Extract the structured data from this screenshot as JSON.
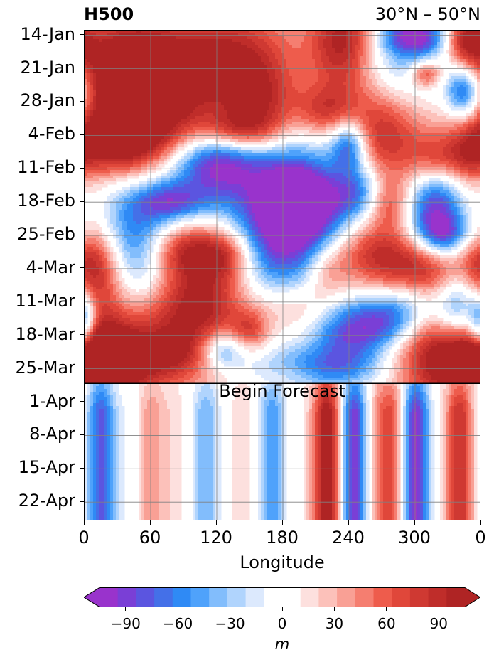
{
  "chart_data": {
    "type": "heatmap",
    "title_left": "H500",
    "title_right": "30°N – 50°N",
    "xlabel": "Longitude",
    "xlim": [
      0,
      360
    ],
    "x_ticks": [
      "0",
      "60",
      "120",
      "180",
      "240",
      "300",
      "0"
    ],
    "y_ticks": [
      "14-Jan",
      "21-Jan",
      "28-Jan",
      "4-Feb",
      "11-Feb",
      "18-Feb",
      "25-Feb",
      "4-Mar",
      "11-Mar",
      "18-Mar",
      "25-Mar",
      "1-Apr",
      "8-Apr",
      "15-Apr",
      "22-Apr"
    ],
    "y_start": "13-Jan",
    "y_end": "26-Apr",
    "forecast_start": "28-Mar",
    "forecast_label": "Begin Forecast",
    "grid": true,
    "colorbar": {
      "label": "m",
      "ticks": [
        "−90",
        "−60",
        "−30",
        "0",
        "30",
        "60",
        "90"
      ],
      "tick_values": [
        -90,
        -60,
        -30,
        0,
        30,
        60,
        90
      ],
      "range": [
        -105,
        105
      ],
      "step": 10,
      "extend": "both",
      "colors": [
        "#9933cc",
        "#7a3fd6",
        "#5b55e0",
        "#4470e8",
        "#2f8af5",
        "#4fa2fb",
        "#82bdfc",
        "#b0d4fd",
        "#dce9fd",
        "#ffffff",
        "#ffffff",
        "#fde0de",
        "#fcc1ba",
        "#f9a095",
        "#f57e70",
        "#ee5c4c",
        "#e0473a",
        "#cf3932",
        "#bf2d2a",
        "#af2424"
      ]
    },
    "observed_anomaly_blobs": [
      {
        "lon": 40,
        "date": "19-Jan",
        "value": 95,
        "rlon": 30,
        "rdays": 6
      },
      {
        "lon": 55,
        "date": "29-Jan",
        "value": 100,
        "rlon": 45,
        "rdays": 8
      },
      {
        "lon": 30,
        "date": "6-Feb",
        "value": 80,
        "rlon": 35,
        "rdays": 5
      },
      {
        "lon": 130,
        "date": "18-Jan",
        "value": 85,
        "rlon": 45,
        "rdays": 7
      },
      {
        "lon": 140,
        "date": "3-Feb",
        "value": 60,
        "rlon": 25,
        "rdays": 3
      },
      {
        "lon": 160,
        "date": "29-Jan",
        "value": 75,
        "rlon": 25,
        "rdays": 6
      },
      {
        "lon": 60,
        "date": "23-Jan",
        "value": -50,
        "rlon": 8,
        "rdays": 2
      },
      {
        "lon": 115,
        "date": "10-Feb",
        "value": -95,
        "rlon": 30,
        "rdays": 5
      },
      {
        "lon": 180,
        "date": "24-Feb",
        "value": -105,
        "rlon": 40,
        "rdays": 14
      },
      {
        "lon": 195,
        "date": "18-Feb",
        "value": -95,
        "rlon": 22,
        "rdays": 5
      },
      {
        "lon": 235,
        "date": "16-Jan",
        "value": 100,
        "rlon": 22,
        "rdays": 8
      },
      {
        "lon": 218,
        "date": "30-Jan",
        "value": 60,
        "rlon": 20,
        "rdays": 4
      },
      {
        "lon": 285,
        "date": "20-Jan",
        "value": -40,
        "rlon": 45,
        "rdays": 6
      },
      {
        "lon": 300,
        "date": "14-Jan",
        "value": -90,
        "rlon": 22,
        "rdays": 3
      },
      {
        "lon": 347,
        "date": "15-Jan",
        "value": 95,
        "rlon": 15,
        "rdays": 4
      },
      {
        "lon": 345,
        "date": "26-Jan",
        "value": -90,
        "rlon": 12,
        "rdays": 4
      },
      {
        "lon": 310,
        "date": "22-Jan",
        "value": 70,
        "rlon": 10,
        "rdays": 2
      },
      {
        "lon": 270,
        "date": "4-Feb",
        "value": 75,
        "rlon": 25,
        "rdays": 7
      },
      {
        "lon": 240,
        "date": "6-Feb",
        "value": -85,
        "rlon": 12,
        "rdays": 4
      },
      {
        "lon": 250,
        "date": "16-Feb",
        "value": -65,
        "rlon": 18,
        "rdays": 4
      },
      {
        "lon": 320,
        "date": "9-Feb",
        "value": 60,
        "rlon": 20,
        "rdays": 4
      },
      {
        "lon": 350,
        "date": "8-Feb",
        "value": 30,
        "rlon": 12,
        "rdays": 4
      },
      {
        "lon": 318,
        "date": "20-Feb",
        "value": -95,
        "rlon": 18,
        "rdays": 7
      },
      {
        "lon": 330,
        "date": "25-Feb",
        "value": -60,
        "rlon": 18,
        "rdays": 3
      },
      {
        "lon": 275,
        "date": "18-Feb",
        "value": 60,
        "rlon": 15,
        "rdays": 4
      },
      {
        "lon": 260,
        "date": "1-Mar",
        "value": 75,
        "rlon": 25,
        "rdays": 5
      },
      {
        "lon": 310,
        "date": "4-Mar",
        "value": 85,
        "rlon": 25,
        "rdays": 5
      },
      {
        "lon": 340,
        "date": "12-Mar",
        "value": -95,
        "rlon": 15,
        "rdays": 6
      },
      {
        "lon": 300,
        "date": "11-Mar",
        "value": -40,
        "rlon": 20,
        "rdays": 4
      },
      {
        "lon": 8,
        "date": "3-Mar",
        "value": 85,
        "rlon": 20,
        "rdays": 6
      },
      {
        "lon": 45,
        "date": "2-Mar",
        "value": -100,
        "rlon": 25,
        "rdays": 11
      },
      {
        "lon": 80,
        "date": "18-Feb",
        "value": -70,
        "rlon": 22,
        "rdays": 3
      },
      {
        "lon": 90,
        "date": "28-Feb",
        "value": 60,
        "rlon": 25,
        "rdays": 4
      },
      {
        "lon": 40,
        "date": "18-Mar",
        "value": 100,
        "rlon": 40,
        "rdays": 11
      },
      {
        "lon": 15,
        "date": "23-Mar",
        "value": 80,
        "rlon": 25,
        "rdays": 4
      },
      {
        "lon": 0,
        "date": "16-Mar",
        "value": -100,
        "rlon": 8,
        "rdays": 5
      },
      {
        "lon": 110,
        "date": "11-Mar",
        "value": 85,
        "rlon": 30,
        "rdays": 9
      },
      {
        "lon": 130,
        "date": "1-Mar",
        "value": 60,
        "rlon": 18,
        "rdays": 4
      },
      {
        "lon": 150,
        "date": "17-Mar",
        "value": 50,
        "rlon": 12,
        "rdays": 3
      },
      {
        "lon": 125,
        "date": "21-Mar",
        "value": -70,
        "rlon": 15,
        "rdays": 3
      },
      {
        "lon": 195,
        "date": "12-Mar",
        "value": 65,
        "rlon": 35,
        "rdays": 5
      },
      {
        "lon": 220,
        "date": "4-Mar",
        "value": 45,
        "rlon": 15,
        "rdays": 4
      },
      {
        "lon": 240,
        "date": "17-Mar",
        "value": -85,
        "rlon": 25,
        "rdays": 5
      },
      {
        "lon": 275,
        "date": "15-Mar",
        "value": -60,
        "rlon": 20,
        "rdays": 4
      },
      {
        "lon": 215,
        "date": "25-Mar",
        "value": -55,
        "rlon": 40,
        "rdays": 3
      },
      {
        "lon": 330,
        "date": "23-Mar",
        "value": 100,
        "rlon": 35,
        "rdays": 7
      },
      {
        "lon": 80,
        "date": "22-Mar",
        "value": 30,
        "rlon": 20,
        "rdays": 3
      },
      {
        "lon": 190,
        "date": "26-Mar",
        "value": 20,
        "rlon": 20,
        "rdays": 2
      }
    ],
    "forecast_bands": [
      {
        "lon": 15,
        "value": -80
      },
      {
        "lon": 40,
        "value": -12
      },
      {
        "lon": 60,
        "value": 32
      },
      {
        "lon": 80,
        "value": 10
      },
      {
        "lon": 110,
        "value": -45
      },
      {
        "lon": 145,
        "value": 12
      },
      {
        "lon": 170,
        "value": -55
      },
      {
        "lon": 195,
        "value": 0
      },
      {
        "lon": 220,
        "value": 100
      },
      {
        "lon": 245,
        "value": -95
      },
      {
        "lon": 265,
        "value": 30
      },
      {
        "lon": 280,
        "value": 55
      },
      {
        "lon": 300,
        "value": -100
      },
      {
        "lon": 340,
        "value": 75
      }
    ]
  }
}
